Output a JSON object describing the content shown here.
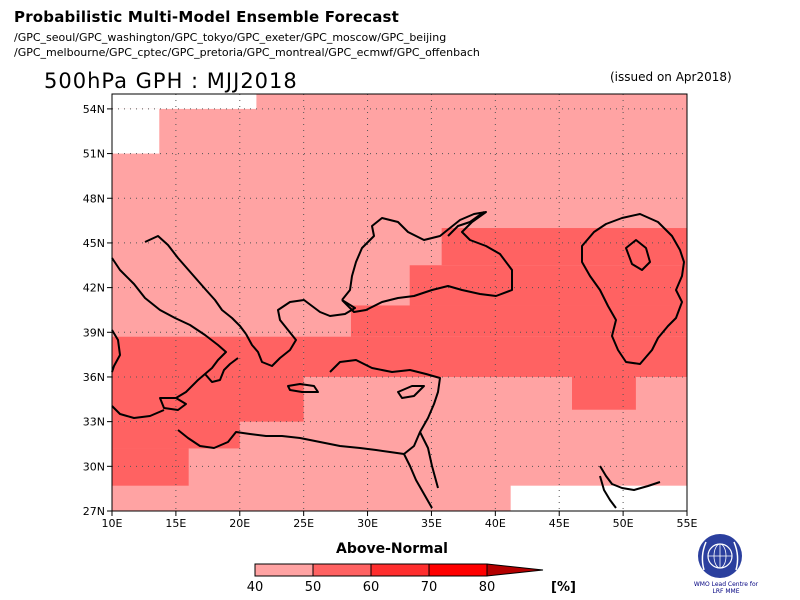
{
  "header": {
    "title": "Probabilistic Multi-Model Ensemble Forecast",
    "centers_line1": "/GPC_seoul/GPC_washington/GPC_tokyo/GPC_exeter/GPC_moscow/GPC_beijing",
    "centers_line2": "/GPC_melbourne/GPC_cptec/GPC_pretoria/GPC_montreal/GPC_ecmwf/GPC_offenbach",
    "variable_period": "500hPa GPH : MJJ2018",
    "issued": "(issued on Apr2018)"
  },
  "map": {
    "lon_range": [
      10,
      55
    ],
    "lat_range": [
      27,
      55
    ],
    "lat_ticks": [
      "54N",
      "51N",
      "48N",
      "45N",
      "42N",
      "39N",
      "36N",
      "33N",
      "30N",
      "27N"
    ],
    "lat_values": [
      54,
      51,
      48,
      45,
      42,
      39,
      36,
      33,
      30,
      27
    ],
    "lon_ticks": [
      "10E",
      "15E",
      "20E",
      "25E",
      "30E",
      "35E",
      "40E",
      "45E",
      "50E",
      "55E"
    ],
    "lon_values": [
      10,
      15,
      20,
      25,
      30,
      35,
      40,
      45,
      50,
      55
    ],
    "grid": "dotted",
    "colors": {
      "40-50": "#ffa3a3",
      "50-60": "#ff6262"
    },
    "regions": [
      {
        "category": "40-50",
        "lon": [
          10,
          55
        ],
        "lat": [
          27,
          55
        ]
      },
      {
        "category": "50-60",
        "lon": [
          10,
          25
        ],
        "lat": [
          33,
          38.7
        ]
      },
      {
        "category": "50-60",
        "lon": [
          10,
          20
        ],
        "lat": [
          31.2,
          33
        ]
      },
      {
        "category": "50-60",
        "lon": [
          10,
          16
        ],
        "lat": [
          28.7,
          31.2
        ]
      },
      {
        "category": "50-60",
        "lon": [
          25,
          55
        ],
        "lat": [
          36,
          38.7
        ]
      },
      {
        "category": "50-60",
        "lon": [
          28.7,
          55
        ],
        "lat": [
          38.7,
          40.8
        ]
      },
      {
        "category": "50-60",
        "lon": [
          33.3,
          55
        ],
        "lat": [
          40.8,
          43.5
        ]
      },
      {
        "category": "50-60",
        "lon": [
          35.8,
          55
        ],
        "lat": [
          43.5,
          46
        ]
      },
      {
        "category": "50-60",
        "lon": [
          46,
          51
        ],
        "lat": [
          33.8,
          36
        ]
      }
    ],
    "missing": [
      {
        "lon": [
          10,
          13.7
        ],
        "lat": [
          51,
          54
        ]
      },
      {
        "lon": [
          10,
          21.3
        ],
        "lat": [
          54,
          55
        ]
      },
      {
        "lon": [
          41.2,
          55
        ],
        "lat": [
          27,
          28.7
        ]
      }
    ]
  },
  "legend": {
    "title": "Above-Normal",
    "boundaries": [
      "40",
      "50",
      "60",
      "70",
      "80"
    ],
    "unit": "[%]",
    "colors": [
      "#ffa3a3",
      "#ff6262",
      "#ff2e2e",
      "#ff0000",
      "#b40000"
    ]
  },
  "logo": {
    "caption": "WMO Lead Centre for LRF MME"
  }
}
